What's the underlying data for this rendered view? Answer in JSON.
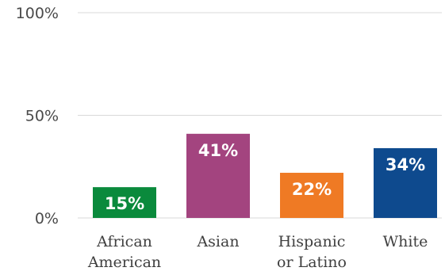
{
  "chart_data": {
    "type": "bar",
    "title": "",
    "xlabel": "",
    "ylabel": "",
    "categories": [
      [
        "African",
        "American"
      ],
      [
        "Asian"
      ],
      [
        "Hispanic",
        "or Latino"
      ],
      [
        "White"
      ]
    ],
    "values": [
      15,
      41,
      22,
      34
    ],
    "data_labels": [
      "15%",
      "41%",
      "22%",
      "34%"
    ],
    "colors": [
      "#0a8a3c",
      "#a3447f",
      "#ef7a24",
      "#0e4a8e"
    ],
    "ylim": [
      0,
      100
    ],
    "y_ticks": [
      {
        "value": 0,
        "label": "0%"
      },
      {
        "value": 50,
        "label": "50%"
      },
      {
        "value": 100,
        "label": "100%"
      }
    ],
    "grid": true,
    "legend": "none"
  }
}
